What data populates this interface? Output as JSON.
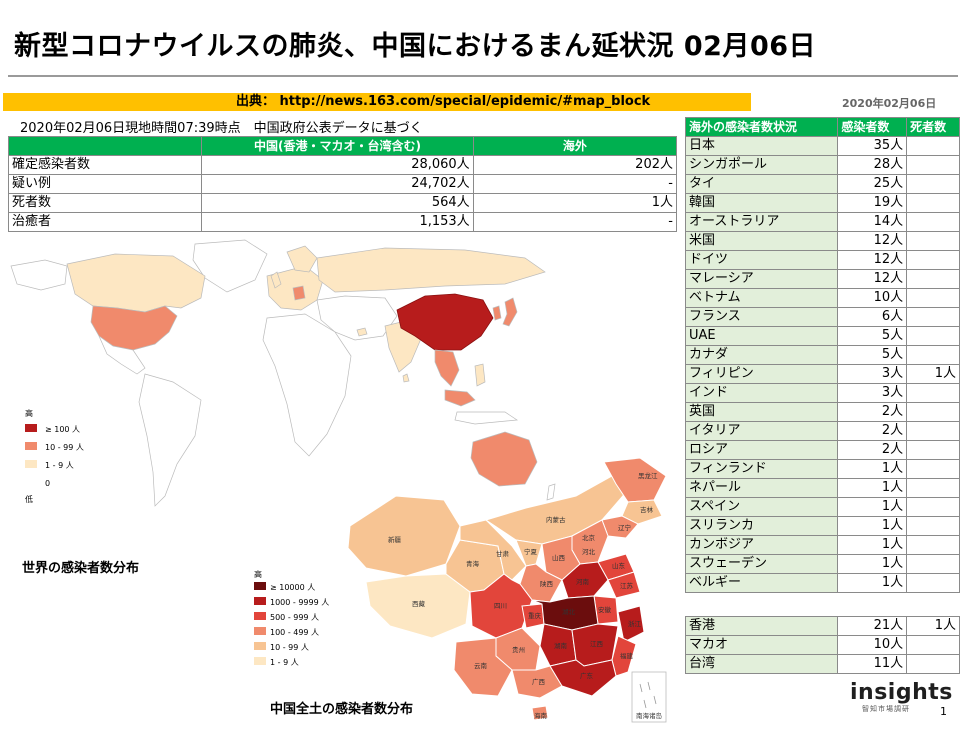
{
  "title": "新型コロナウイルスの肺炎、中国におけるまん延状況 02月06日",
  "source": {
    "text": "出典： http://news.163.com/special/epidemic/#map_block"
  },
  "report_date": "2020年02月06日",
  "timestamp": "2020年02月06日現地時間07:39時点　中国政府公表データに基づく",
  "summary": {
    "headers": [
      "",
      "中国(香港・マカオ・台湾含む)",
      "海外"
    ],
    "rows": [
      {
        "label": "確定感染者数",
        "china": "28,060人",
        "overseas": "202人"
      },
      {
        "label": "疑い例",
        "china": "24,702人",
        "overseas": "-"
      },
      {
        "label": "死者数",
        "china": "564人",
        "overseas": "1人"
      },
      {
        "label": "治癒者",
        "china": "1,153人",
        "overseas": "-"
      }
    ]
  },
  "countries": {
    "headers": [
      "海外の感染者数状況",
      "感染者数",
      "死者数"
    ],
    "rows": [
      {
        "name": "日本",
        "cases": "35人",
        "deaths": ""
      },
      {
        "name": "シンガポール",
        "cases": "28人",
        "deaths": ""
      },
      {
        "name": "タイ",
        "cases": "25人",
        "deaths": ""
      },
      {
        "name": "韓国",
        "cases": "19人",
        "deaths": ""
      },
      {
        "name": "オーストラリア",
        "cases": "14人",
        "deaths": ""
      },
      {
        "name": "米国",
        "cases": "12人",
        "deaths": ""
      },
      {
        "name": "ドイツ",
        "cases": "12人",
        "deaths": ""
      },
      {
        "name": "マレーシア",
        "cases": "12人",
        "deaths": ""
      },
      {
        "name": "ベトナム",
        "cases": "10人",
        "deaths": ""
      },
      {
        "name": "フランス",
        "cases": "6人",
        "deaths": ""
      },
      {
        "name": "UAE",
        "cases": "5人",
        "deaths": ""
      },
      {
        "name": "カナダ",
        "cases": "5人",
        "deaths": ""
      },
      {
        "name": "フィリピン",
        "cases": "3人",
        "deaths": "1人"
      },
      {
        "name": "インド",
        "cases": "3人",
        "deaths": ""
      },
      {
        "name": "英国",
        "cases": "2人",
        "deaths": ""
      },
      {
        "name": "イタリア",
        "cases": "2人",
        "deaths": ""
      },
      {
        "name": "ロシア",
        "cases": "2人",
        "deaths": ""
      },
      {
        "name": "フィンランド",
        "cases": "1人",
        "deaths": ""
      },
      {
        "name": "ネパール",
        "cases": "1人",
        "deaths": ""
      },
      {
        "name": "スペイン",
        "cases": "1人",
        "deaths": ""
      },
      {
        "name": "スリランカ",
        "cases": "1人",
        "deaths": ""
      },
      {
        "name": "カンボジア",
        "cases": "1人",
        "deaths": ""
      },
      {
        "name": "スウェーデン",
        "cases": "1人",
        "deaths": ""
      },
      {
        "name": "ベルギー",
        "cases": "1人",
        "deaths": ""
      }
    ]
  },
  "regions": {
    "rows": [
      {
        "name": "香港",
        "cases": "21人",
        "deaths": "1人"
      },
      {
        "name": "マカオ",
        "cases": "10人",
        "deaths": ""
      },
      {
        "name": "台湾",
        "cases": "11人",
        "deaths": ""
      }
    ]
  },
  "world_map": {
    "caption": "世界の感染者数分布",
    "legend_high": "高",
    "legend_low": "低",
    "legend": [
      {
        "label": "≥ 100 人",
        "color": "#b71c1c"
      },
      {
        "label": "10 - 99 人",
        "color": "#f08a6c"
      },
      {
        "label": "1 - 9 人",
        "color": "#fde7c3"
      },
      {
        "label": "0",
        "color": "#ffffff"
      }
    ]
  },
  "china_map": {
    "caption": "中国全土の感染者数分布",
    "legend_high": "高",
    "legend": [
      {
        "label": "≥ 10000 人",
        "color": "#6b0d0d"
      },
      {
        "label": "1000 - 9999 人",
        "color": "#b71c1c"
      },
      {
        "label": "500 - 999 人",
        "color": "#e2453b"
      },
      {
        "label": "100 - 499 人",
        "color": "#f08a6c"
      },
      {
        "label": "10 - 99 人",
        "color": "#f7c493"
      },
      {
        "label": "1 - 9 人",
        "color": "#fde7c3"
      }
    ],
    "province_labels": [
      "新疆",
      "西藏",
      "青海",
      "甘肃",
      "四川",
      "内蒙古",
      "黑龙江",
      "吉林",
      "辽宁",
      "北京",
      "河北",
      "山西",
      "山东",
      "宁夏",
      "陕西",
      "河南",
      "江苏",
      "安徽",
      "湖北",
      "重庆",
      "浙江",
      "湖南",
      "江西",
      "贵州",
      "福建",
      "云南",
      "广西",
      "广东",
      "海南",
      "南海诸岛"
    ]
  },
  "logo": {
    "text": "insights",
    "sub": "智知市場調研"
  },
  "page_number": "1"
}
